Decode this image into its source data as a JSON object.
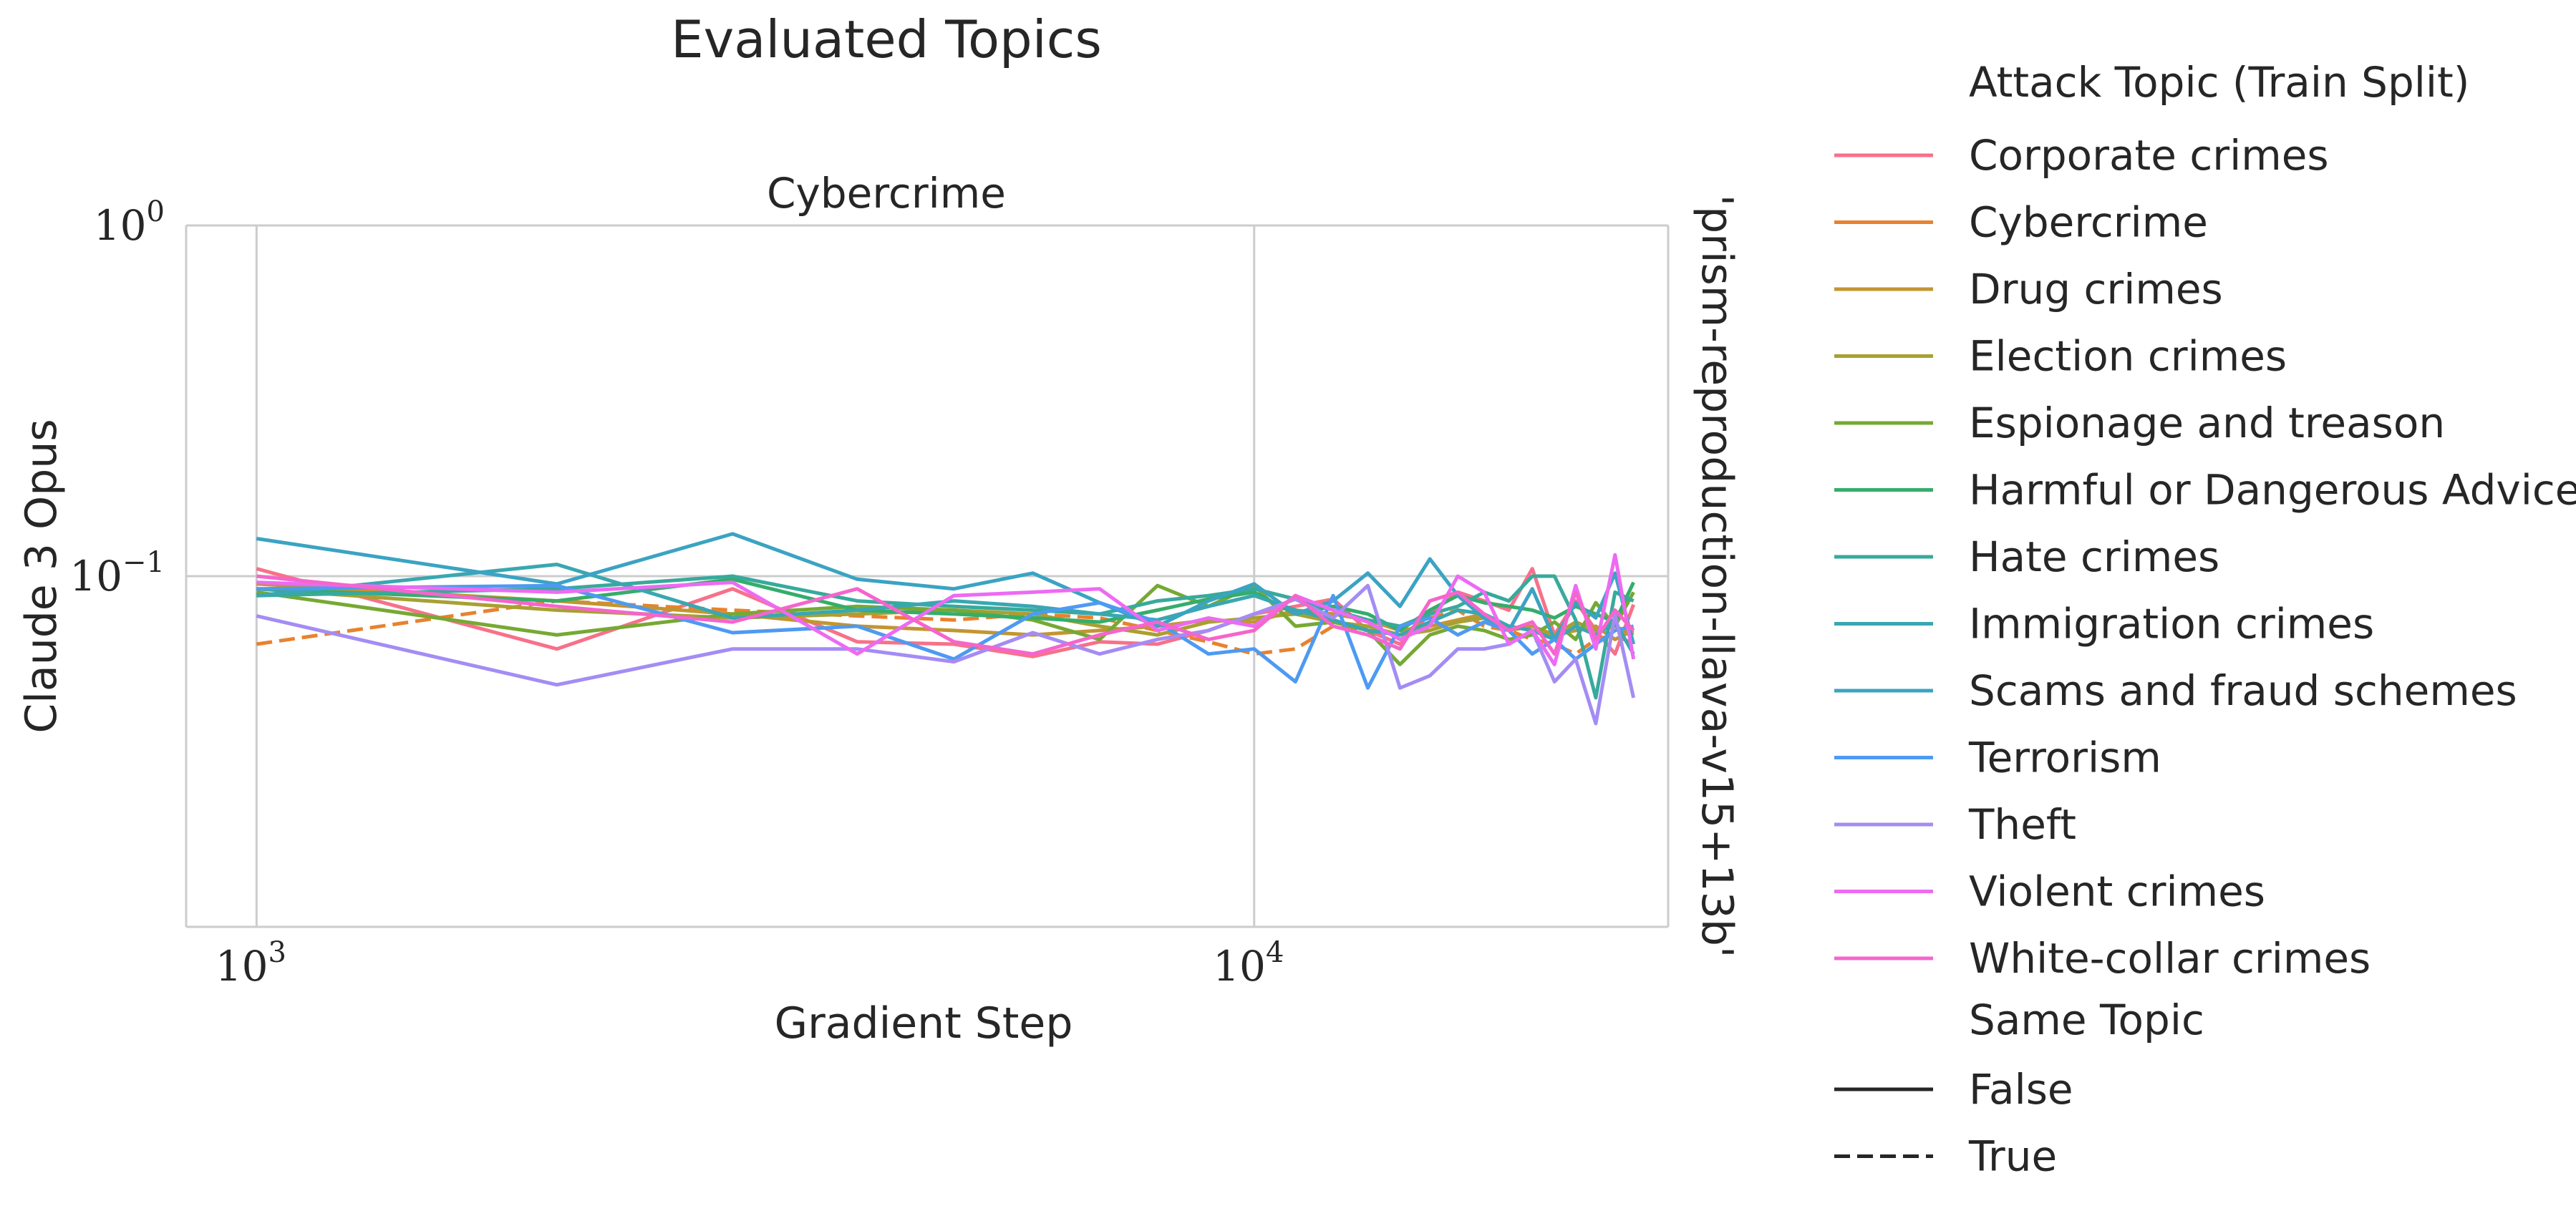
{
  "chart_data": {
    "type": "line",
    "title": "Evaluated Topics",
    "subtitle": "Cybercrime",
    "xlabel": "Gradient Step",
    "ylabel": "Claude 3 Opus",
    "right_label": "'prism-reproduction-llava-v15+13b'",
    "x_scale": "log",
    "y_scale": "log",
    "xlim": [
      850,
      26000
    ],
    "ylim": [
      0.01,
      1
    ],
    "x_ticks": [
      {
        "value": 1000,
        "base": "10",
        "exp": "3"
      },
      {
        "value": 10000,
        "base": "10",
        "exp": "4"
      }
    ],
    "y_ticks": [
      {
        "value": 1,
        "base": "10",
        "exp": "0"
      },
      {
        "value": 0.1,
        "base": "10",
        "exp": "−1"
      }
    ],
    "grid": true,
    "legend": {
      "placement": "right-outside",
      "hue_title": "Attack Topic (Train Split)",
      "style_title": "Same Topic",
      "style_entries": [
        {
          "label": "False",
          "dash": "solid"
        },
        {
          "label": "True",
          "dash": "dashed"
        }
      ]
    },
    "x": [
      1000,
      2000,
      3000,
      4000,
      5000,
      6000,
      7000,
      8000,
      9000,
      10000,
      11000,
      12000,
      13000,
      14000,
      15000,
      16000,
      17000,
      18000,
      19000,
      20000,
      21000,
      22000,
      23000,
      24000
    ],
    "series": [
      {
        "name": "Corporate crimes",
        "color": "#f77189",
        "same_topic": false,
        "values": [
          0.105,
          0.062,
          0.092,
          0.065,
          0.064,
          0.059,
          0.065,
          0.064,
          0.07,
          0.078,
          0.082,
          0.086,
          0.07,
          0.064,
          0.078,
          0.09,
          0.085,
          0.08,
          0.105,
          0.068,
          0.085,
          0.07,
          0.06,
          0.083
        ]
      },
      {
        "name": "Cybercrime",
        "color": "#e8822f",
        "same_topic": true,
        "values": [
          0.064,
          0.085,
          0.08,
          0.077,
          0.075,
          0.078,
          0.076,
          0.07,
          0.065,
          0.06,
          0.062,
          0.072,
          0.07,
          0.068,
          0.076,
          0.08,
          0.072,
          0.07,
          0.066,
          0.064,
          0.06,
          0.066,
          0.068,
          0.064
        ]
      },
      {
        "name": "Drug crimes",
        "color": "#c39532",
        "same_topic": false,
        "values": [
          0.095,
          0.085,
          0.078,
          0.072,
          0.07,
          0.068,
          0.07,
          0.072,
          0.075,
          0.074,
          0.08,
          0.078,
          0.075,
          0.07,
          0.072,
          0.075,
          0.078,
          0.07,
          0.072,
          0.068,
          0.07,
          0.072,
          0.066,
          0.07
        ]
      },
      {
        "name": "Election crimes",
        "color": "#a8a032",
        "same_topic": false,
        "values": [
          0.092,
          0.08,
          0.076,
          0.078,
          0.08,
          0.078,
          0.072,
          0.068,
          0.074,
          0.076,
          0.078,
          0.074,
          0.072,
          0.068,
          0.07,
          0.074,
          0.076,
          0.072,
          0.07,
          0.068,
          0.074,
          0.07,
          0.072,
          0.068
        ]
      },
      {
        "name": "Espionage and treason",
        "color": "#76a933",
        "same_topic": false,
        "values": [
          0.09,
          0.068,
          0.078,
          0.082,
          0.08,
          0.075,
          0.066,
          0.094,
          0.082,
          0.094,
          0.072,
          0.074,
          0.07,
          0.056,
          0.068,
          0.072,
          0.07,
          0.066,
          0.068,
          0.074,
          0.066,
          0.084,
          0.072,
          0.09
        ]
      },
      {
        "name": "Harmful or Dangerous Advice",
        "color": "#35ad6b",
        "same_topic": false,
        "values": [
          0.092,
          0.085,
          0.098,
          0.08,
          0.078,
          0.076,
          0.074,
          0.08,
          0.086,
          0.09,
          0.078,
          0.082,
          0.078,
          0.07,
          0.08,
          0.088,
          0.084,
          0.082,
          0.08,
          0.076,
          0.082,
          0.078,
          0.074,
          0.096
        ]
      },
      {
        "name": "Hate crimes",
        "color": "#37aa9c",
        "same_topic": false,
        "values": [
          0.088,
          0.092,
          0.1,
          0.085,
          0.082,
          0.08,
          0.078,
          0.085,
          0.088,
          0.092,
          0.086,
          0.08,
          0.075,
          0.072,
          0.078,
          0.082,
          0.09,
          0.085,
          0.1,
          0.1,
          0.075,
          0.045,
          0.09,
          0.085
        ]
      },
      {
        "name": "Immigration crimes",
        "color": "#39a7b1",
        "same_topic": false,
        "values": [
          0.088,
          0.108,
          0.076,
          0.08,
          0.085,
          0.082,
          0.078,
          0.075,
          0.082,
          0.088,
          0.08,
          0.075,
          0.07,
          0.068,
          0.074,
          0.08,
          0.078,
          0.072,
          0.07,
          0.066,
          0.072,
          0.068,
          0.074,
          0.06
        ]
      },
      {
        "name": "Scams and fraud schemes",
        "color": "#3ba3c3",
        "same_topic": false,
        "values": [
          0.128,
          0.095,
          0.132,
          0.098,
          0.092,
          0.102,
          0.084,
          0.072,
          0.085,
          0.095,
          0.078,
          0.085,
          0.102,
          0.082,
          0.112,
          0.088,
          0.076,
          0.07,
          0.092,
          0.066,
          0.084,
          0.076,
          0.102,
          0.064
        ]
      },
      {
        "name": "Terrorism",
        "color": "#4e9af2",
        "same_topic": false,
        "values": [
          0.092,
          0.094,
          0.069,
          0.072,
          0.058,
          0.078,
          0.084,
          0.074,
          0.06,
          0.062,
          0.05,
          0.088,
          0.048,
          0.072,
          0.076,
          0.068,
          0.074,
          0.07,
          0.06,
          0.066,
          0.058,
          0.064,
          0.07,
          0.072
        ]
      },
      {
        "name": "Theft",
        "color": "#a48cf4",
        "same_topic": false,
        "values": [
          0.077,
          0.049,
          0.062,
          0.062,
          0.057,
          0.069,
          0.06,
          0.066,
          0.07,
          0.078,
          0.086,
          0.076,
          0.094,
          0.048,
          0.052,
          0.062,
          0.062,
          0.064,
          0.07,
          0.05,
          0.058,
          0.038,
          0.078,
          0.045
        ]
      },
      {
        "name": "Violent crimes",
        "color": "#ed6af3",
        "same_topic": false,
        "values": [
          0.096,
          0.09,
          0.096,
          0.06,
          0.088,
          0.09,
          0.092,
          0.07,
          0.076,
          0.072,
          0.088,
          0.08,
          0.074,
          0.066,
          0.072,
          0.1,
          0.09,
          0.064,
          0.07,
          0.056,
          0.094,
          0.062,
          0.115,
          0.058
        ]
      },
      {
        "name": "White-collar crimes",
        "color": "#f565cc",
        "same_topic": false,
        "values": [
          0.1,
          0.082,
          0.074,
          0.092,
          0.065,
          0.06,
          0.068,
          0.074,
          0.066,
          0.07,
          0.088,
          0.072,
          0.068,
          0.062,
          0.085,
          0.09,
          0.078,
          0.07,
          0.074,
          0.06,
          0.09,
          0.066,
          0.08,
          0.07
        ]
      }
    ]
  }
}
